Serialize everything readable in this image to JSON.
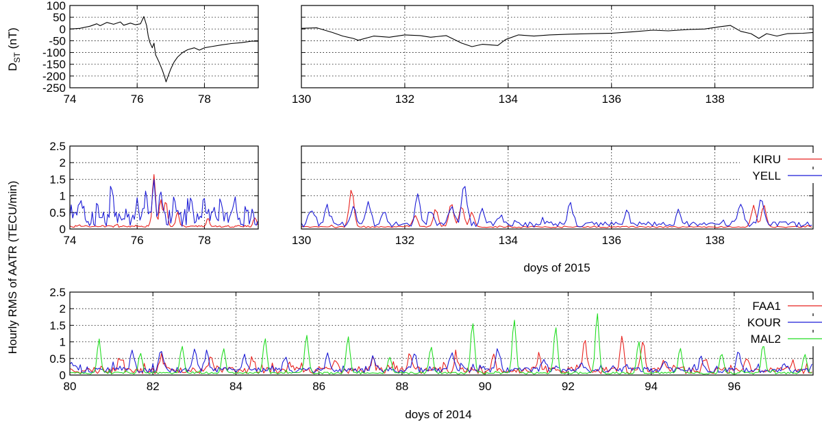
{
  "labels": {
    "dst_ylabel_main": "D",
    "dst_ylabel_sub": "ST",
    "dst_ylabel_unit": " (nT)",
    "aatr_ylabel": "Hourly RMS of AATR (TECU/min)",
    "xlabel_2015": "doys of 2015",
    "xlabel_2014": "doys of 2014"
  },
  "colors": {
    "red": "#e8211d",
    "blue": "#1b1bd6",
    "green": "#22dd22",
    "black": "#000000"
  },
  "chart_data": [
    {
      "id": "dst-left",
      "type": "line",
      "xlim": [
        74,
        79.6
      ],
      "ylim": [
        -250,
        100
      ],
      "xticks": [
        74,
        76,
        78
      ],
      "yticks": [
        100,
        50,
        0,
        -50,
        -100,
        -150,
        -200,
        -250
      ],
      "grid": true,
      "series": [
        {
          "color": "black",
          "points": [
            [
              74.0,
              0
            ],
            [
              74.3,
              3
            ],
            [
              74.6,
              12
            ],
            [
              74.8,
              22
            ],
            [
              74.9,
              14
            ],
            [
              75.1,
              28
            ],
            [
              75.3,
              20
            ],
            [
              75.5,
              30
            ],
            [
              75.6,
              16
            ],
            [
              75.8,
              25
            ],
            [
              75.95,
              18
            ],
            [
              76.1,
              22
            ],
            [
              76.2,
              53
            ],
            [
              76.28,
              15
            ],
            [
              76.33,
              -30
            ],
            [
              76.38,
              -58
            ],
            [
              76.45,
              -80
            ],
            [
              76.5,
              -60
            ],
            [
              76.55,
              -110
            ],
            [
              76.65,
              -140
            ],
            [
              76.75,
              -175
            ],
            [
              76.82,
              -205
            ],
            [
              76.86,
              -225
            ],
            [
              76.92,
              -200
            ],
            [
              77.0,
              -170
            ],
            [
              77.1,
              -140
            ],
            [
              77.2,
              -120
            ],
            [
              77.35,
              -100
            ],
            [
              77.5,
              -88
            ],
            [
              77.7,
              -80
            ],
            [
              77.85,
              -90
            ],
            [
              78.0,
              -80
            ],
            [
              78.2,
              -75
            ],
            [
              78.5,
              -68
            ],
            [
              78.8,
              -62
            ],
            [
              79.1,
              -58
            ],
            [
              79.4,
              -52
            ],
            [
              79.6,
              -52
            ]
          ]
        }
      ]
    },
    {
      "id": "dst-right",
      "type": "line",
      "xlim": [
        130,
        139.9
      ],
      "ylim": [
        -250,
        100
      ],
      "xticks": [
        130,
        132,
        134,
        136,
        138
      ],
      "grid": true,
      "series": [
        {
          "color": "black",
          "points": [
            [
              130.0,
              3
            ],
            [
              130.3,
              5
            ],
            [
              130.6,
              -15
            ],
            [
              130.8,
              -30
            ],
            [
              131.0,
              -40
            ],
            [
              131.1,
              -48
            ],
            [
              131.4,
              -30
            ],
            [
              131.7,
              -35
            ],
            [
              132.0,
              -25
            ],
            [
              132.3,
              -28
            ],
            [
              132.5,
              -35
            ],
            [
              132.8,
              -28
            ],
            [
              133.1,
              -60
            ],
            [
              133.3,
              -75
            ],
            [
              133.5,
              -65
            ],
            [
              133.8,
              -70
            ],
            [
              133.95,
              -45
            ],
            [
              134.2,
              -25
            ],
            [
              134.5,
              -30
            ],
            [
              134.8,
              -25
            ],
            [
              135.2,
              -22
            ],
            [
              135.6,
              -20
            ],
            [
              136.0,
              -18
            ],
            [
              136.4,
              -12
            ],
            [
              136.8,
              -5
            ],
            [
              137.1,
              -8
            ],
            [
              137.5,
              -2
            ],
            [
              137.8,
              0
            ],
            [
              138.1,
              10
            ],
            [
              138.3,
              15
            ],
            [
              138.5,
              -10
            ],
            [
              138.7,
              -20
            ],
            [
              138.85,
              -40
            ],
            [
              139.0,
              -20
            ],
            [
              139.2,
              -30
            ],
            [
              139.4,
              -20
            ],
            [
              139.7,
              -18
            ],
            [
              139.9,
              -15
            ]
          ]
        }
      ]
    },
    {
      "id": "aatr-2015-left",
      "type": "line",
      "xlim": [
        74,
        79.6
      ],
      "ylim": [
        0,
        2.5
      ],
      "xticks": [
        74,
        76,
        78
      ],
      "yticks": [
        2.5,
        2,
        1.5,
        1,
        0.5,
        0
      ],
      "grid": true,
      "series": [
        {
          "name": "KIRU",
          "color": "red",
          "base": 0.08,
          "noise": 0.03,
          "peaks": [
            [
              76.5,
              1.65
            ],
            [
              76.7,
              0.9
            ],
            [
              76.85,
              0.85
            ],
            [
              77.2,
              0.5
            ],
            [
              78.1,
              0.3
            ],
            [
              79.5,
              0.35
            ]
          ]
        },
        {
          "name": "YELL",
          "color": "blue",
          "base": 0.3,
          "noise": 0.22,
          "peaks": [
            [
              74.3,
              0.78
            ],
            [
              74.9,
              0.45
            ],
            [
              75.25,
              1.18
            ],
            [
              76.0,
              0.8
            ],
            [
              76.25,
              0.95
            ],
            [
              76.5,
              1.3
            ],
            [
              76.7,
              1.1
            ],
            [
              77.1,
              0.9
            ],
            [
              77.6,
              0.8
            ],
            [
              78.0,
              0.9
            ],
            [
              78.5,
              1.0
            ],
            [
              78.9,
              1.08
            ],
            [
              79.4,
              0.4
            ]
          ]
        }
      ]
    },
    {
      "id": "aatr-2015-right",
      "type": "line",
      "xlim": [
        130,
        139.9
      ],
      "ylim": [
        0,
        2.5
      ],
      "xticks": [
        130,
        132,
        134,
        136,
        138
      ],
      "xlabel": "doys of 2015",
      "grid": true,
      "legend": [
        "KIRU",
        "YELL"
      ],
      "series": [
        {
          "name": "KIRU",
          "color": "red",
          "base": 0.06,
          "noise": 0.02,
          "peaks": [
            [
              130.97,
              1.2
            ],
            [
              132.2,
              0.4
            ],
            [
              132.6,
              0.6
            ],
            [
              132.9,
              0.8
            ],
            [
              133.1,
              0.7
            ],
            [
              133.3,
              0.5
            ],
            [
              138.75,
              0.7
            ],
            [
              138.95,
              0.7
            ]
          ]
        },
        {
          "name": "YELL",
          "color": "blue",
          "base": 0.14,
          "noise": 0.08,
          "peaks": [
            [
              130.2,
              0.6
            ],
            [
              130.5,
              0.65
            ],
            [
              131.0,
              0.7
            ],
            [
              131.3,
              0.8
            ],
            [
              131.6,
              0.55
            ],
            [
              132.25,
              1.1
            ],
            [
              132.5,
              0.55
            ],
            [
              132.9,
              0.7
            ],
            [
              133.15,
              1.45
            ],
            [
              133.5,
              0.55
            ],
            [
              133.8,
              0.35
            ],
            [
              135.2,
              0.75
            ],
            [
              136.3,
              0.5
            ],
            [
              137.3,
              0.6
            ],
            [
              138.5,
              0.8
            ],
            [
              138.9,
              0.95
            ],
            [
              139.3,
              0.25
            ]
          ]
        }
      ]
    },
    {
      "id": "aatr-2014",
      "type": "line",
      "xlim": [
        80,
        97.9
      ],
      "ylim": [
        0,
        2.5
      ],
      "xticks": [
        80,
        82,
        84,
        86,
        88,
        90,
        92,
        94,
        96
      ],
      "yticks": [
        2.5,
        2,
        1.5,
        1,
        0.5,
        0
      ],
      "xlabel": "doys of 2014",
      "grid": true,
      "legend": [
        "FAA1",
        "KOUR",
        "MAL2"
      ],
      "series": [
        {
          "name": "FAA1",
          "color": "red",
          "base": 0.14,
          "noise": 0.1,
          "peaks": [
            [
              81.2,
              0.5
            ],
            [
              82.2,
              0.6
            ],
            [
              83.4,
              0.65
            ],
            [
              84.4,
              0.5
            ],
            [
              85.3,
              0.4
            ],
            [
              86.4,
              0.5
            ],
            [
              87.3,
              0.5
            ],
            [
              88.2,
              0.6
            ],
            [
              89.3,
              0.6
            ],
            [
              90.2,
              0.7
            ],
            [
              91.3,
              0.6
            ],
            [
              92.4,
              1.0
            ],
            [
              93.3,
              1.25
            ],
            [
              93.8,
              1.05
            ],
            [
              94.3,
              0.4
            ],
            [
              95.3,
              0.5
            ],
            [
              96.3,
              0.5
            ],
            [
              97.4,
              0.4
            ]
          ]
        },
        {
          "name": "KOUR",
          "color": "blue",
          "base": 0.15,
          "noise": 0.08,
          "peaks": [
            [
              80.05,
              0.4
            ],
            [
              81.5,
              0.7
            ],
            [
              82.2,
              0.8
            ],
            [
              83.0,
              0.85
            ],
            [
              83.3,
              0.7
            ],
            [
              84.2,
              0.6
            ],
            [
              85.2,
              0.5
            ],
            [
              86.2,
              0.6
            ],
            [
              87.3,
              0.5
            ],
            [
              88.3,
              0.7
            ],
            [
              89.2,
              0.75
            ],
            [
              90.3,
              0.8
            ],
            [
              91.4,
              0.5
            ],
            [
              92.3,
              0.3
            ],
            [
              93.4,
              0.35
            ],
            [
              94.3,
              0.4
            ],
            [
              95.2,
              0.55
            ],
            [
              96.1,
              0.7
            ],
            [
              97.2,
              0.3
            ]
          ]
        },
        {
          "name": "MAL2",
          "color": "green",
          "base": 0.06,
          "noise": 0.03,
          "peaks": [
            [
              80.7,
              1.05
            ],
            [
              81.7,
              0.65
            ],
            [
              82.7,
              0.9
            ],
            [
              83.7,
              0.8
            ],
            [
              84.7,
              1.1
            ],
            [
              85.7,
              1.2
            ],
            [
              86.7,
              1.15
            ],
            [
              87.7,
              0.55
            ],
            [
              88.7,
              0.85
            ],
            [
              89.7,
              1.6
            ],
            [
              90.7,
              1.7
            ],
            [
              91.7,
              1.45
            ],
            [
              92.7,
              1.85
            ],
            [
              93.7,
              1.0
            ],
            [
              94.7,
              0.8
            ],
            [
              95.7,
              0.65
            ],
            [
              96.7,
              0.95
            ],
            [
              97.7,
              0.6
            ]
          ]
        }
      ]
    }
  ]
}
